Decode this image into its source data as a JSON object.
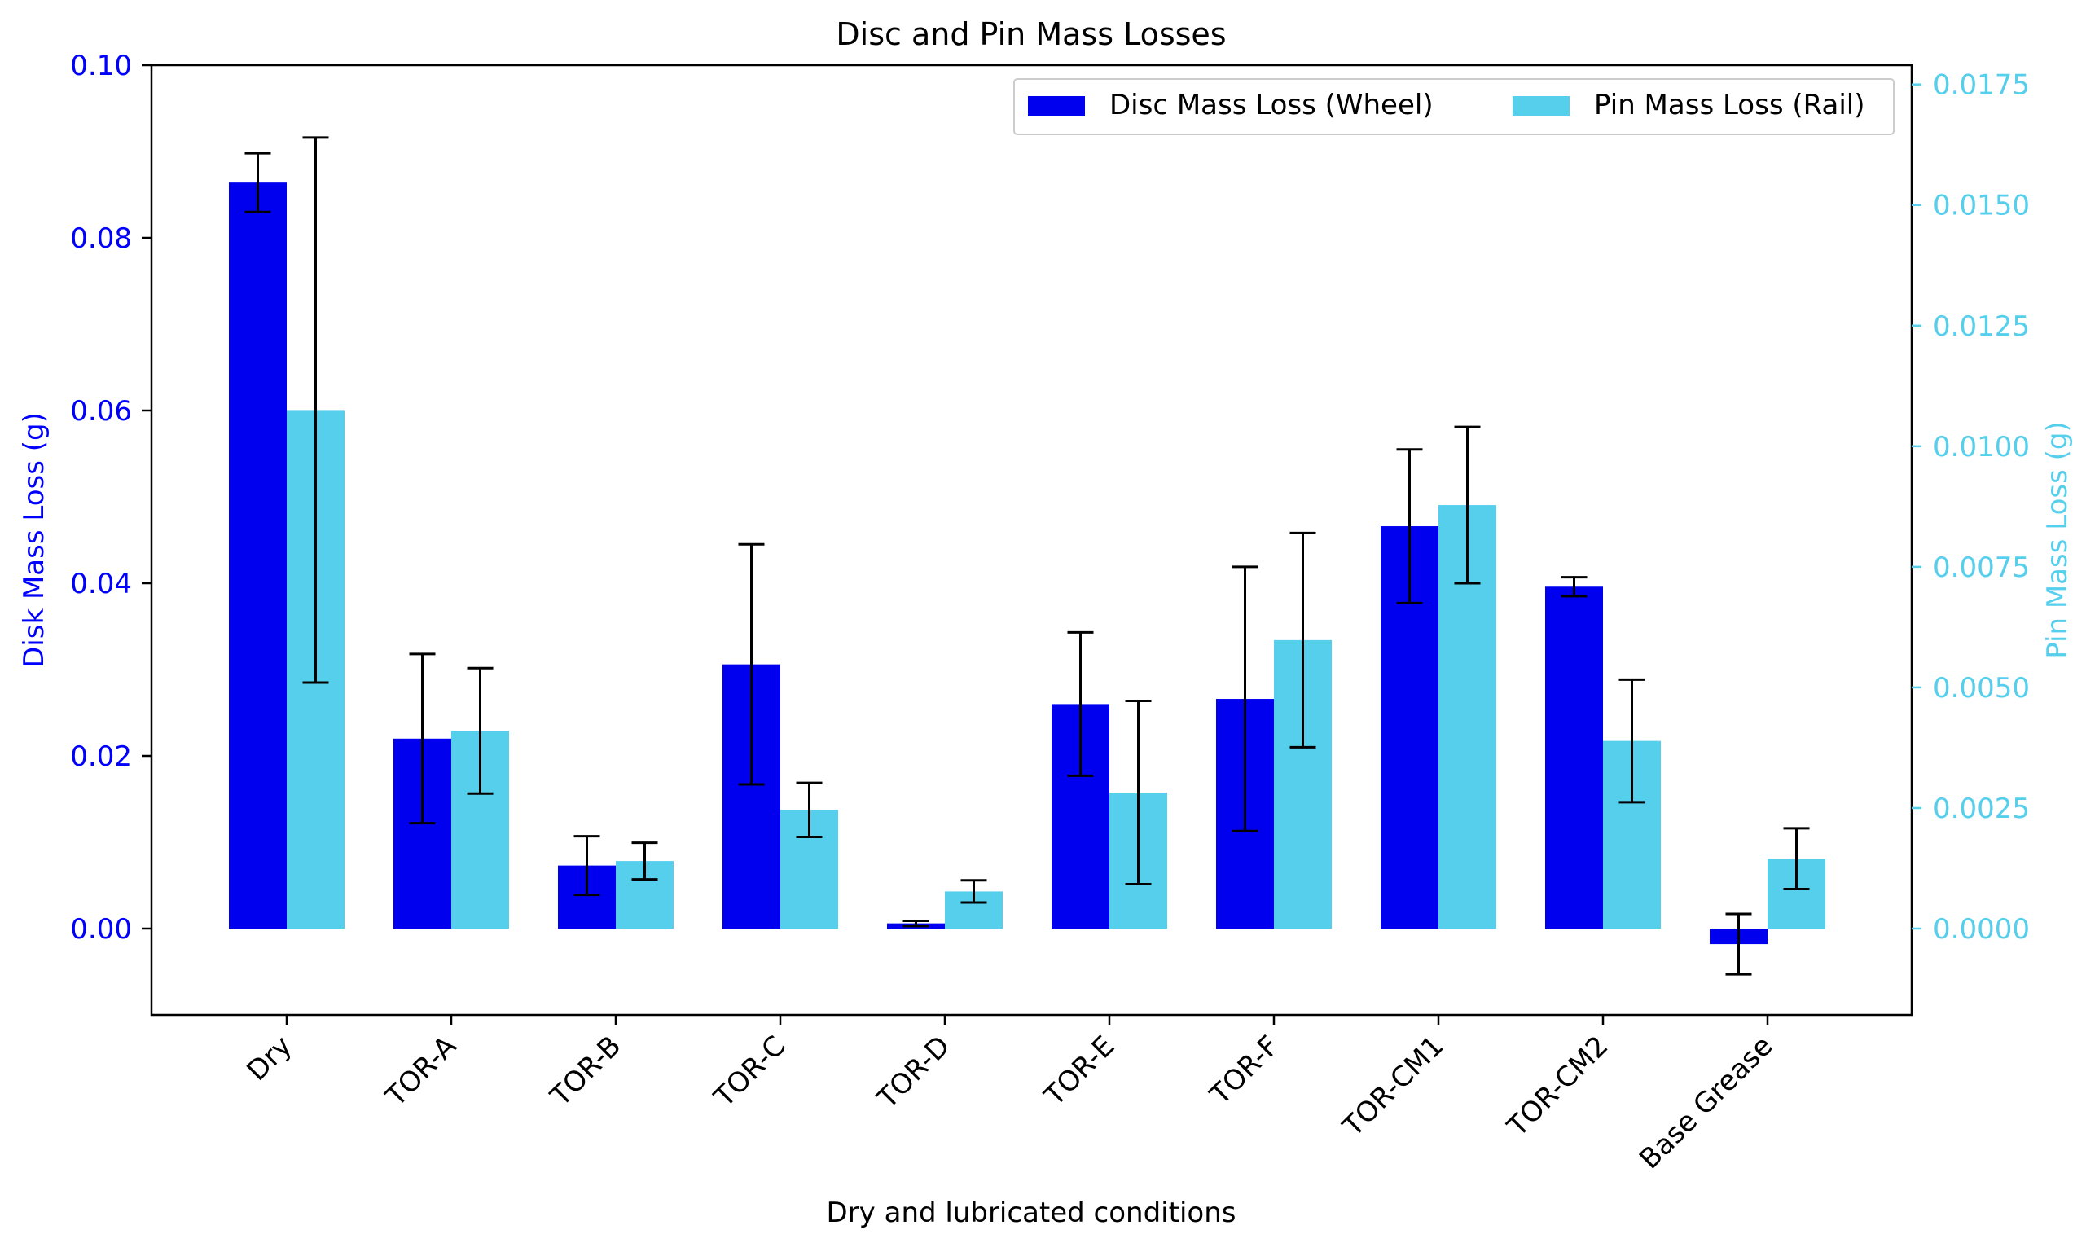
{
  "chart_data": {
    "type": "bar",
    "title": "Disc and Pin Mass Losses",
    "xlabel": "Dry and lubricated conditions",
    "categories": [
      "Dry",
      "TOR-A",
      "TOR-B",
      "TOR-C",
      "TOR-D",
      "TOR-E",
      "TOR-F",
      "TOR-CM1",
      "TOR-CM2",
      "Base Grease"
    ],
    "y_left": {
      "label": "Disk Mass Loss (g)",
      "lim": [
        -0.01,
        0.1
      ],
      "ticks": [
        "0.00",
        "0.02",
        "0.04",
        "0.06",
        "0.08",
        "0.10"
      ],
      "tick_values": [
        0.0,
        0.02,
        0.04,
        0.06,
        0.08,
        0.1
      ],
      "color": "#0000ff"
    },
    "y_right": {
      "label": "Pin Mass Loss (g)",
      "lim": [
        -0.00179,
        0.0179
      ],
      "ticks": [
        "0.0000",
        "0.0025",
        "0.0050",
        "0.0075",
        "0.0100",
        "0.0125",
        "0.0150",
        "0.0175"
      ],
      "tick_values": [
        0.0,
        0.0025,
        0.005,
        0.0075,
        0.01,
        0.0125,
        0.015,
        0.0175
      ],
      "color": "#56cfed"
    },
    "series": [
      {
        "name": "Disc Mass Loss (Wheel)",
        "axis": "left",
        "color": "#0000ee",
        "values": [
          0.0864,
          0.022,
          0.0073,
          0.0306,
          0.0006,
          0.026,
          0.0266,
          0.0466,
          0.0396,
          -0.0018
        ],
        "errors": [
          0.0034,
          0.0098,
          0.0034,
          0.0139,
          0.0003,
          0.0083,
          0.0153,
          0.0089,
          0.0011,
          0.0035
        ]
      },
      {
        "name": "Pin Mass Loss (Rail)",
        "axis": "right",
        "color": "#56cfed",
        "values": [
          0.01075,
          0.0041,
          0.0014,
          0.00246,
          0.00077,
          0.00282,
          0.00598,
          0.00878,
          0.00389,
          0.00145
        ],
        "errors": [
          0.00565,
          0.0013,
          0.00038,
          0.00056,
          0.00023,
          0.0019,
          0.00222,
          0.00162,
          0.00127,
          0.00063
        ]
      }
    ],
    "legend": "top-right",
    "grid": false
  }
}
